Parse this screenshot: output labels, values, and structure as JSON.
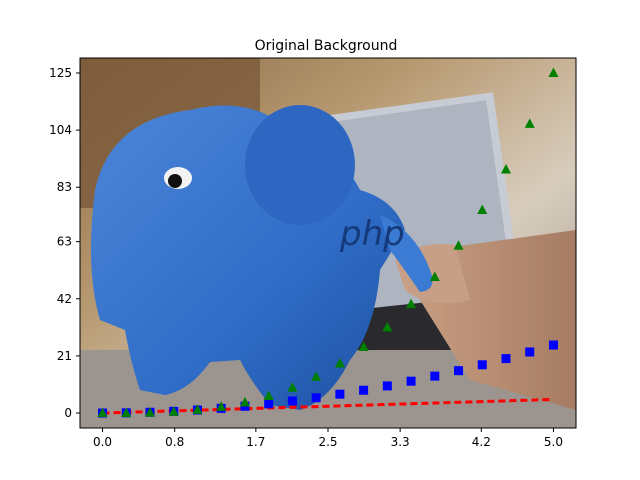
{
  "chart_data": {
    "type": "scatter",
    "title": "Original Background",
    "background_image": "photo of blue stuffed elephant toy in front of laptop with a hand typing",
    "xlim": [
      -0.25,
      5.25
    ],
    "ylim": [
      -5.5,
      130.5
    ],
    "xticks": [
      0.0,
      0.8,
      1.7,
      2.5,
      3.3,
      4.2,
      5.0
    ],
    "xtick_labels": [
      "0.0",
      "0.8",
      "1.7",
      "2.5",
      "3.3",
      "4.2",
      "5.0"
    ],
    "yticks": [
      0,
      21,
      42,
      63,
      83,
      104,
      125
    ],
    "ytick_labels": [
      "0",
      "21",
      "42",
      "63",
      "83",
      "104",
      "125"
    ],
    "x": [
      0.0,
      0.2632,
      0.5263,
      0.7895,
      1.0526,
      1.3158,
      1.5789,
      1.8421,
      2.1053,
      2.3684,
      2.6316,
      2.8947,
      3.1579,
      3.4211,
      3.6842,
      3.9474,
      4.2105,
      4.4737,
      4.7368,
      5.0
    ],
    "series": [
      {
        "marker": "dashed-line",
        "color": "#ff0000",
        "values": [
          0.0,
          0.26,
          0.53,
          0.79,
          1.05,
          1.32,
          1.58,
          1.84,
          2.11,
          2.37,
          2.63,
          2.89,
          3.16,
          3.42,
          3.68,
          3.95,
          4.21,
          4.47,
          4.74,
          5.0
        ]
      },
      {
        "marker": "square",
        "color": "#0000ff",
        "values": [
          0.0,
          0.07,
          0.28,
          0.62,
          1.11,
          1.73,
          2.49,
          3.39,
          4.43,
          5.61,
          6.93,
          8.38,
          9.97,
          11.7,
          13.57,
          15.58,
          17.73,
          20.01,
          22.44,
          25.0
        ]
      },
      {
        "marker": "triangle",
        "color": "#008000",
        "values": [
          0.0,
          0.02,
          0.15,
          0.49,
          1.17,
          2.28,
          3.94,
          6.25,
          9.33,
          13.29,
          18.22,
          24.26,
          31.49,
          40.04,
          50.01,
          61.51,
          74.64,
          89.53,
          106.28,
          125.0
        ]
      }
    ],
    "legend": false,
    "grid": false
  }
}
